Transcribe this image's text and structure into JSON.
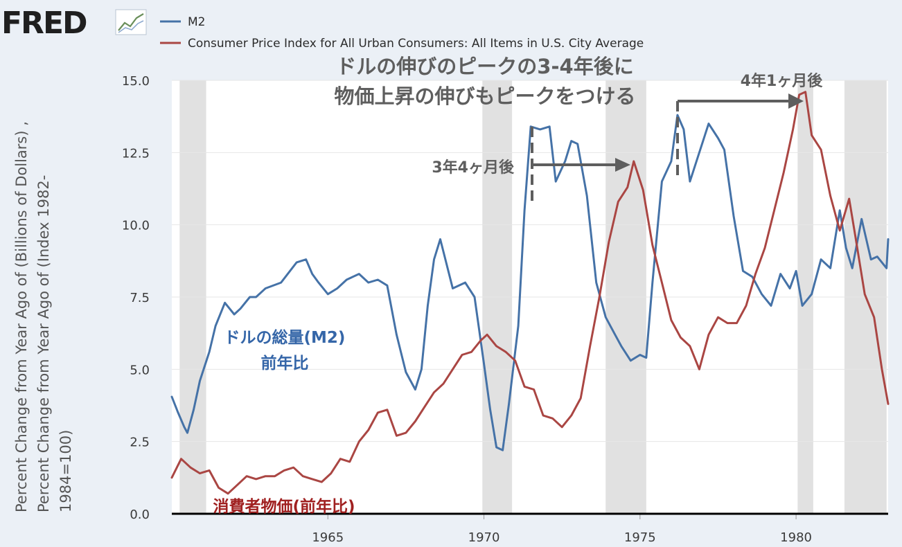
{
  "logo": {
    "text": "FRED",
    "icon": "chart-line-icon"
  },
  "legend": [
    {
      "label": "M2",
      "color": "#4572a7"
    },
    {
      "label": "Consumer Price Index for All Urban Consumers: All Items in U.S. City Average",
      "color": "#aa4643"
    }
  ],
  "annotations": {
    "headline_line1": "ドルの伸びのピークの3-4年後に",
    "headline_line2": "物価上昇の伸びもピークをつける",
    "lag1": "3年4ヶ月後",
    "lag2": "4年1ヶ月後",
    "m2_label_line1": "ドルの総量(M2)",
    "m2_label_line2": "前年比",
    "cpi_label": "消費者物価(前年比)"
  },
  "y_axis_label": {
    "line1": "Percent Change from Year Ago of (Billions of Dollars) ,",
    "line2": "Percent Change from Year Ago of (Index 1982-",
    "line3": "1984=100)"
  },
  "chart_data": {
    "type": "line",
    "xlim": [
      1960.0,
      1982.95
    ],
    "ylim": [
      0,
      15
    ],
    "x_ticks": [
      {
        "value": 1965,
        "label": "1965"
      },
      {
        "value": 1970,
        "label": "1970"
      },
      {
        "value": 1975,
        "label": "1975"
      },
      {
        "value": 1980,
        "label": "1980"
      }
    ],
    "y_ticks": [
      {
        "value": 0,
        "label": "0.0"
      },
      {
        "value": 2.5,
        "label": "2.5"
      },
      {
        "value": 5,
        "label": "5.0"
      },
      {
        "value": 7.5,
        "label": "7.5"
      },
      {
        "value": 10,
        "label": "10.0"
      },
      {
        "value": 12.5,
        "label": "12.5"
      },
      {
        "value": 15,
        "label": "15.0"
      }
    ],
    "grid": true,
    "legend_position": "top-left",
    "recessions": [
      [
        1960.25,
        1961.1
      ],
      [
        1969.95,
        1970.9
      ],
      [
        1973.9,
        1975.2
      ],
      [
        1980.05,
        1980.55
      ],
      [
        1981.55,
        1982.9
      ]
    ],
    "series": [
      {
        "name": "M2",
        "color": "#4572a7",
        "x": [
          1960.0,
          1960.2,
          1960.4,
          1960.5,
          1960.7,
          1960.9,
          1961.2,
          1961.4,
          1961.7,
          1962.0,
          1962.2,
          1962.5,
          1962.7,
          1963.0,
          1963.5,
          1964.0,
          1964.3,
          1964.5,
          1964.7,
          1965.0,
          1965.3,
          1965.6,
          1966.0,
          1966.3,
          1966.6,
          1966.9,
          1967.2,
          1967.5,
          1967.8,
          1968.0,
          1968.2,
          1968.4,
          1968.6,
          1969.0,
          1969.4,
          1969.7,
          1970.0,
          1970.2,
          1970.4,
          1970.6,
          1970.8,
          1971.1,
          1971.3,
          1971.5,
          1971.8,
          1972.1,
          1972.3,
          1972.6,
          1972.8,
          1973.0,
          1973.3,
          1973.6,
          1973.9,
          1974.2,
          1974.4,
          1974.7,
          1975.0,
          1975.2,
          1975.4,
          1975.7,
          1976.0,
          1976.2,
          1976.4,
          1976.6,
          1976.9,
          1977.2,
          1977.5,
          1977.7,
          1978.0,
          1978.3,
          1978.6,
          1978.9,
          1979.2,
          1979.5,
          1979.8,
          1980.0,
          1980.2,
          1980.5,
          1980.8,
          1981.1,
          1981.4,
          1981.6,
          1981.8,
          1982.1,
          1982.4,
          1982.6,
          1982.9,
          1982.95
        ],
        "values": [
          4.05,
          3.5,
          3.0,
          2.8,
          3.6,
          4.6,
          5.6,
          6.5,
          7.3,
          6.9,
          7.1,
          7.5,
          7.5,
          7.8,
          8.0,
          8.7,
          8.8,
          8.3,
          8.0,
          7.6,
          7.8,
          8.1,
          8.3,
          8.0,
          8.1,
          7.9,
          6.2,
          4.9,
          4.3,
          5.0,
          7.2,
          8.8,
          9.5,
          7.8,
          8.0,
          7.5,
          5.2,
          3.6,
          2.3,
          2.2,
          3.8,
          6.5,
          10.5,
          13.4,
          13.3,
          13.4,
          11.5,
          12.2,
          12.9,
          12.8,
          11.0,
          8.0,
          6.8,
          6.2,
          5.8,
          5.3,
          5.5,
          5.4,
          8.0,
          11.5,
          12.2,
          13.8,
          13.3,
          11.5,
          12.5,
          13.5,
          13.0,
          12.6,
          10.3,
          8.4,
          8.2,
          7.6,
          7.2,
          8.3,
          7.8,
          8.4,
          7.2,
          7.6,
          8.8,
          8.5,
          10.5,
          9.2,
          8.5,
          10.2,
          8.8,
          8.9,
          8.5,
          9.5
        ]
      },
      {
        "name": "Consumer Price Index for All Urban Consumers: All Items in U.S. City Average",
        "color": "#aa4643",
        "x": [
          1960.0,
          1960.3,
          1960.6,
          1960.9,
          1961.2,
          1961.5,
          1961.8,
          1962.1,
          1962.4,
          1962.7,
          1963.0,
          1963.3,
          1963.6,
          1963.9,
          1964.2,
          1964.5,
          1964.8,
          1965.1,
          1965.4,
          1965.7,
          1966.0,
          1966.3,
          1966.6,
          1966.9,
          1967.2,
          1967.5,
          1967.8,
          1968.1,
          1968.4,
          1968.7,
          1969.0,
          1969.3,
          1969.6,
          1969.9,
          1970.1,
          1970.4,
          1970.7,
          1971.0,
          1971.3,
          1971.6,
          1971.9,
          1972.2,
          1972.5,
          1972.8,
          1973.1,
          1973.4,
          1973.7,
          1974.0,
          1974.3,
          1974.6,
          1974.8,
          1975.1,
          1975.4,
          1975.7,
          1976.0,
          1976.3,
          1976.6,
          1976.9,
          1977.2,
          1977.5,
          1977.8,
          1978.1,
          1978.4,
          1978.7,
          1979.0,
          1979.3,
          1979.6,
          1979.9,
          1980.1,
          1980.3,
          1980.5,
          1980.8,
          1981.1,
          1981.4,
          1981.7,
          1981.9,
          1982.2,
          1982.5,
          1982.75,
          1982.95
        ],
        "values": [
          1.25,
          1.9,
          1.6,
          1.4,
          1.5,
          0.9,
          0.7,
          1.0,
          1.3,
          1.2,
          1.3,
          1.3,
          1.5,
          1.6,
          1.3,
          1.2,
          1.1,
          1.4,
          1.9,
          1.8,
          2.5,
          2.9,
          3.5,
          3.6,
          2.7,
          2.8,
          3.2,
          3.7,
          4.2,
          4.5,
          5.0,
          5.5,
          5.6,
          6.0,
          6.2,
          5.8,
          5.6,
          5.3,
          4.4,
          4.3,
          3.4,
          3.3,
          3.0,
          3.4,
          4.0,
          5.8,
          7.5,
          9.4,
          10.8,
          11.3,
          12.2,
          11.2,
          9.3,
          8.0,
          6.7,
          6.1,
          5.8,
          5.0,
          6.2,
          6.8,
          6.6,
          6.6,
          7.2,
          8.3,
          9.2,
          10.5,
          11.8,
          13.3,
          14.5,
          14.6,
          13.1,
          12.6,
          11.0,
          9.8,
          10.9,
          9.6,
          7.6,
          6.8,
          5.0,
          3.8
        ]
      }
    ]
  }
}
